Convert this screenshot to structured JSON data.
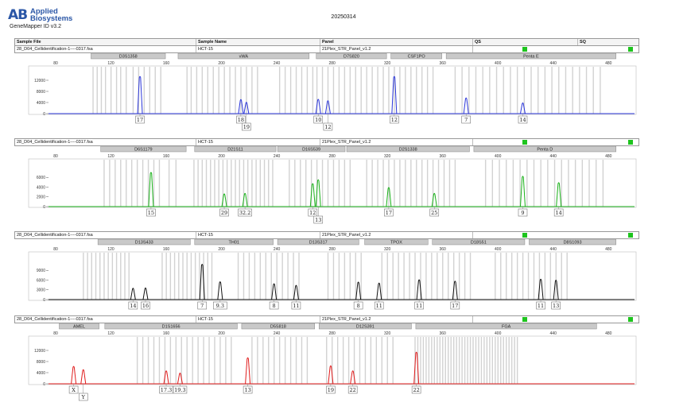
{
  "header": {
    "logo": "AB",
    "brand_line1": "Applied",
    "brand_line2": "Biosystems",
    "software": "GeneMapper ID v3.2",
    "run_date": "20250314"
  },
  "columns": [
    "Sample File",
    "Sample Name",
    "Panel",
    "QS",
    "SQ"
  ],
  "panels": [
    {
      "sample_file": "28_D04_Cellidentification-1----0317.fsa",
      "sample_name": "HCT-15",
      "panel": "21Plex_STR_Panel_v1.2",
      "color": "#2b36d9",
      "markers": [
        {
          "name": "D3S1358",
          "from": 105,
          "to": 160
        },
        {
          "name": "vWA",
          "from": 168,
          "to": 264
        },
        {
          "name": "D7S820",
          "from": 268,
          "to": 320
        },
        {
          "name": "CSF1PO",
          "from": 322,
          "to": 360
        },
        {
          "name": "Penta E",
          "from": 362,
          "to": 486
        }
      ],
      "ladder": [
        107,
        110,
        113,
        116,
        120,
        124,
        127,
        131,
        136,
        140,
        144,
        148,
        152,
        156,
        175,
        178,
        182,
        186,
        190,
        194,
        198,
        202,
        206,
        210,
        214,
        218,
        222,
        226,
        242,
        246,
        250,
        254,
        258,
        262,
        266,
        269,
        273,
        277,
        281,
        285,
        289,
        293,
        297,
        301,
        305,
        309,
        313,
        317,
        321,
        325,
        329,
        333,
        337,
        341,
        345,
        349,
        353,
        369,
        374,
        379,
        384,
        389,
        394,
        399,
        404,
        409,
        414,
        419,
        424,
        429,
        434,
        439,
        444,
        449,
        454,
        459,
        464,
        469,
        474
      ],
      "ymax": 14000,
      "ticks": [
        0,
        4000,
        8000,
        12000
      ],
      "peaks": [
        {
          "size": 141,
          "height": 13500,
          "label": "17"
        },
        {
          "size": 214,
          "height": 5200,
          "label": "18"
        },
        {
          "size": 218,
          "height": 4200,
          "label": "19"
        },
        {
          "size": 270,
          "height": 5300,
          "label": "10"
        },
        {
          "size": 277,
          "height": 4800,
          "label": "12"
        },
        {
          "size": 325,
          "height": 13500,
          "label": "12"
        },
        {
          "size": 377,
          "height": 5800,
          "label": "7"
        },
        {
          "size": 418,
          "height": 4000,
          "label": "14"
        }
      ]
    },
    {
      "sample_file": "28_D04_Cellidentification-1----0317.fsa",
      "sample_name": "HCT-15",
      "panel": "21Plex_STR_Panel_v1.2",
      "color": "#19b019",
      "markers": [
        {
          "name": "D6S1179",
          "from": 112,
          "to": 175
        },
        {
          "name": "D21S11",
          "from": 180,
          "to": 240
        },
        {
          "name": "D16S539",
          "from": 240,
          "to": 290
        },
        {
          "name": "D2S1338",
          "from": 290,
          "to": 380
        },
        {
          "name": "Penta D",
          "from": 382,
          "to": 486
        }
      ],
      "ladder": [
        115,
        119,
        123,
        127,
        131,
        135,
        139,
        143,
        147,
        151,
        155,
        162,
        167,
        180,
        183,
        186,
        189,
        192,
        195,
        198,
        201,
        204,
        207,
        210,
        213,
        216,
        219,
        222,
        225,
        228,
        231,
        234,
        237,
        249,
        253,
        257,
        261,
        265,
        269,
        273,
        277,
        281,
        285,
        289,
        293,
        305,
        309,
        313,
        317,
        321,
        325,
        329,
        333,
        337,
        341,
        345,
        349,
        353,
        357,
        361,
        365,
        369,
        391,
        396,
        401,
        406,
        411,
        416,
        421,
        426,
        431,
        436,
        441,
        446,
        451,
        456,
        461,
        466,
        471,
        476
      ],
      "ymax": 8000,
      "ticks": [
        0,
        2000,
        4000,
        6000
      ],
      "peaks": [
        {
          "size": 149,
          "height": 7100,
          "label": "15"
        },
        {
          "size": 202,
          "height": 2700,
          "label": "29"
        },
        {
          "size": 217,
          "height": 2800,
          "label": "32.2"
        },
        {
          "size": 266,
          "height": 4800,
          "label": "12"
        },
        {
          "size": 270,
          "height": 5600,
          "label": "13"
        },
        {
          "size": 321,
          "height": 4000,
          "label": "17"
        },
        {
          "size": 354,
          "height": 2800,
          "label": "25"
        },
        {
          "size": 418,
          "height": 6300,
          "label": "9"
        },
        {
          "size": 444,
          "height": 5000,
          "label": "14"
        }
      ]
    },
    {
      "sample_file": "28_D04_Cellidentification-1----0317.fsa",
      "sample_name": "HCT-15",
      "panel": "21Plex_STR_Panel_v1.2",
      "color": "#111111",
      "markers": [
        {
          "name": "D13S433",
          "from": 110,
          "to": 178
        },
        {
          "name": "TH01",
          "from": 180,
          "to": 238
        },
        {
          "name": "D13S317",
          "from": 240,
          "to": 300
        },
        {
          "name": "TPOX",
          "from": 303,
          "to": 350
        },
        {
          "name": "D18S51",
          "from": 352,
          "to": 420
        },
        {
          "name": "D8S1093",
          "from": 422,
          "to": 486
        }
      ],
      "ladder": [
        100,
        103,
        106,
        109,
        112,
        115,
        118,
        121,
        124,
        127,
        130,
        133,
        157,
        160,
        163,
        166,
        169,
        172,
        175,
        178,
        181,
        184,
        187,
        190,
        193,
        212,
        216,
        220,
        224,
        228,
        232,
        236,
        240,
        244,
        248,
        252,
        256,
        277,
        281,
        285,
        289,
        293,
        297,
        301,
        316,
        320,
        324,
        328,
        332,
        336,
        340,
        344,
        348,
        352,
        356,
        360,
        364,
        368,
        372,
        376,
        380,
        398,
        402,
        406,
        410,
        414,
        418,
        422,
        426,
        430,
        434,
        438,
        442,
        446,
        450
      ],
      "ymax": 12000,
      "ticks": [
        0,
        3000,
        6000,
        9000
      ],
      "peaks": [
        {
          "size": 136,
          "height": 3600,
          "label": "14"
        },
        {
          "size": 145,
          "height": 3700,
          "label": "16"
        },
        {
          "size": 186,
          "height": 11000,
          "label": "7"
        },
        {
          "size": 199,
          "height": 5600,
          "label": "9.3"
        },
        {
          "size": 238,
          "height": 5000,
          "label": "8"
        },
        {
          "size": 254,
          "height": 4500,
          "label": "11"
        },
        {
          "size": 299,
          "height": 5500,
          "label": "8"
        },
        {
          "size": 314,
          "height": 5200,
          "label": "11"
        },
        {
          "size": 343,
          "height": 6200,
          "label": "11"
        },
        {
          "size": 369,
          "height": 5800,
          "label": "17"
        },
        {
          "size": 431,
          "height": 6400,
          "label": "11"
        },
        {
          "size": 442,
          "height": 6100,
          "label": "13"
        }
      ]
    },
    {
      "sample_file": "28_D04_Cellidentification-1----0317.fsa",
      "sample_name": "HCT-15",
      "panel": "21Plex_STR_Panel_v1.2",
      "color": "#e01c1c",
      "markers": [
        {
          "name": "AMEL",
          "from": 82,
          "to": 112
        },
        {
          "name": "D1S1656",
          "from": 115,
          "to": 212
        },
        {
          "name": "D5S818",
          "from": 214,
          "to": 268
        },
        {
          "name": "D12S391",
          "from": 270,
          "to": 338
        },
        {
          "name": "FGA",
          "from": 340,
          "to": 472
        }
      ],
      "ladder": [
        139,
        143,
        147,
        151,
        155,
        159,
        163,
        167,
        171,
        175,
        179,
        183,
        187,
        191,
        195,
        199,
        203,
        207,
        222,
        226,
        230,
        234,
        238,
        242,
        246,
        250,
        254,
        258,
        262,
        276,
        280,
        284,
        288,
        292,
        296,
        300,
        304,
        308,
        312,
        316,
        320,
        324,
        340,
        342,
        344,
        346,
        348,
        350,
        352,
        354,
        356,
        358,
        360,
        362,
        364,
        366,
        368,
        370,
        372,
        374,
        376,
        378,
        380,
        382,
        384,
        386,
        388,
        390,
        392,
        394,
        396,
        398,
        400,
        402,
        404,
        406,
        408,
        410,
        412,
        414
      ],
      "ymax": 14000,
      "ticks": [
        0,
        4000,
        8000,
        12000
      ],
      "peaks": [
        {
          "size": 93,
          "height": 6400,
          "label": "X"
        },
        {
          "size": 100,
          "height": 5200,
          "label": "Y"
        },
        {
          "size": 160,
          "height": 4800,
          "label": "17.3"
        },
        {
          "size": 170,
          "height": 4000,
          "label": "19.3"
        },
        {
          "size": 219,
          "height": 9500,
          "label": "13"
        },
        {
          "size": 279,
          "height": 6600,
          "label": "19"
        },
        {
          "size": 295,
          "height": 4800,
          "label": "22"
        },
        {
          "size": 341,
          "height": 11500,
          "label": "22"
        }
      ]
    }
  ],
  "chart_data": [
    {
      "type": "line",
      "title": "28_D04_Cellidentification-1----0317.fsa",
      "xlim": [
        80,
        500
      ],
      "x_ticks": [
        80,
        120,
        160,
        200,
        240,
        280,
        320,
        360,
        400,
        440,
        480
      ],
      "ylim": [
        0,
        14000
      ],
      "y_ticks": [
        0,
        4000,
        8000,
        12000
      ],
      "series": [
        {
          "name": "D3S1358",
          "x": [
            141
          ],
          "y": [
            13500
          ],
          "labels": [
            "17"
          ]
        },
        {
          "name": "vWA",
          "x": [
            214,
            218
          ],
          "y": [
            5200,
            4200
          ],
          "labels": [
            "18",
            "19"
          ]
        },
        {
          "name": "D7S820",
          "x": [
            270,
            277
          ],
          "y": [
            5300,
            4800
          ],
          "labels": [
            "10",
            "12"
          ]
        },
        {
          "name": "CSF1PO",
          "x": [
            325
          ],
          "y": [
            13500
          ],
          "labels": [
            "12"
          ]
        },
        {
          "name": "Penta E",
          "x": [
            377,
            418
          ],
          "y": [
            5800,
            4000
          ],
          "labels": [
            "7",
            "14"
          ]
        }
      ]
    },
    {
      "type": "line",
      "title": "28_D04_Cellidentification-1----0317.fsa",
      "xlim": [
        80,
        500
      ],
      "x_ticks": [
        80,
        120,
        160,
        200,
        240,
        280,
        320,
        360,
        400,
        440,
        480
      ],
      "ylim": [
        0,
        8000
      ],
      "y_ticks": [
        0,
        2000,
        4000,
        6000
      ],
      "series": [
        {
          "name": "D6S1179",
          "x": [
            149
          ],
          "y": [
            7100
          ],
          "labels": [
            "15"
          ]
        },
        {
          "name": "D21S11",
          "x": [
            202,
            217
          ],
          "y": [
            2700,
            2800
          ],
          "labels": [
            "29",
            "32.2"
          ]
        },
        {
          "name": "D16S539",
          "x": [
            266,
            270
          ],
          "y": [
            4800,
            5600
          ],
          "labels": [
            "12",
            "13"
          ]
        },
        {
          "name": "D2S1338",
          "x": [
            321,
            354
          ],
          "y": [
            4000,
            2800
          ],
          "labels": [
            "17",
            "25"
          ]
        },
        {
          "name": "Penta D",
          "x": [
            418,
            444
          ],
          "y": [
            6300,
            5000
          ],
          "labels": [
            "9",
            "14"
          ]
        }
      ]
    },
    {
      "type": "line",
      "title": "28_D04_Cellidentification-1----0317.fsa",
      "xlim": [
        80,
        500
      ],
      "x_ticks": [
        80,
        120,
        160,
        200,
        240,
        280,
        320,
        360,
        400,
        440,
        480
      ],
      "ylim": [
        0,
        12000
      ],
      "y_ticks": [
        0,
        3000,
        6000,
        9000
      ],
      "series": [
        {
          "name": "D13S433",
          "x": [
            136,
            145
          ],
          "y": [
            3600,
            3700
          ],
          "labels": [
            "14",
            "16"
          ]
        },
        {
          "name": "TH01",
          "x": [
            186,
            199
          ],
          "y": [
            11000,
            5600
          ],
          "labels": [
            "7",
            "9.3"
          ]
        },
        {
          "name": "D13S317",
          "x": [
            238,
            254
          ],
          "y": [
            5000,
            4500
          ],
          "labels": [
            "8",
            "11"
          ]
        },
        {
          "name": "TPOX",
          "x": [
            299,
            314
          ],
          "y": [
            5500,
            5200
          ],
          "labels": [
            "8",
            "11"
          ]
        },
        {
          "name": "D18S51",
          "x": [
            343,
            369
          ],
          "y": [
            6200,
            5800
          ],
          "labels": [
            "11",
            "17"
          ]
        },
        {
          "name": "D8S1093",
          "x": [
            431,
            442
          ],
          "y": [
            6400,
            6100
          ],
          "labels": [
            "11",
            "13"
          ]
        }
      ]
    },
    {
      "type": "line",
      "title": "28_D04_Cellidentification-1----0317.fsa",
      "xlim": [
        80,
        500
      ],
      "x_ticks": [
        80,
        120,
        160,
        200,
        240,
        280,
        320,
        360,
        400,
        440,
        480
      ],
      "ylim": [
        0,
        14000
      ],
      "y_ticks": [
        0,
        4000,
        8000,
        12000
      ],
      "series": [
        {
          "name": "AMEL",
          "x": [
            93,
            100
          ],
          "y": [
            6400,
            5200
          ],
          "labels": [
            "X",
            "Y"
          ]
        },
        {
          "name": "D1S1656",
          "x": [
            160,
            170
          ],
          "y": [
            4800,
            4000
          ],
          "labels": [
            "17.3",
            "19.3"
          ]
        },
        {
          "name": "D5S818",
          "x": [
            219
          ],
          "y": [
            9500
          ],
          "labels": [
            "13"
          ]
        },
        {
          "name": "D12S391",
          "x": [
            279,
            295
          ],
          "y": [
            6600,
            4800
          ],
          "labels": [
            "19",
            "22"
          ]
        },
        {
          "name": "FGA",
          "x": [
            341
          ],
          "y": [
            11500
          ],
          "labels": [
            "22"
          ]
        }
      ]
    }
  ]
}
